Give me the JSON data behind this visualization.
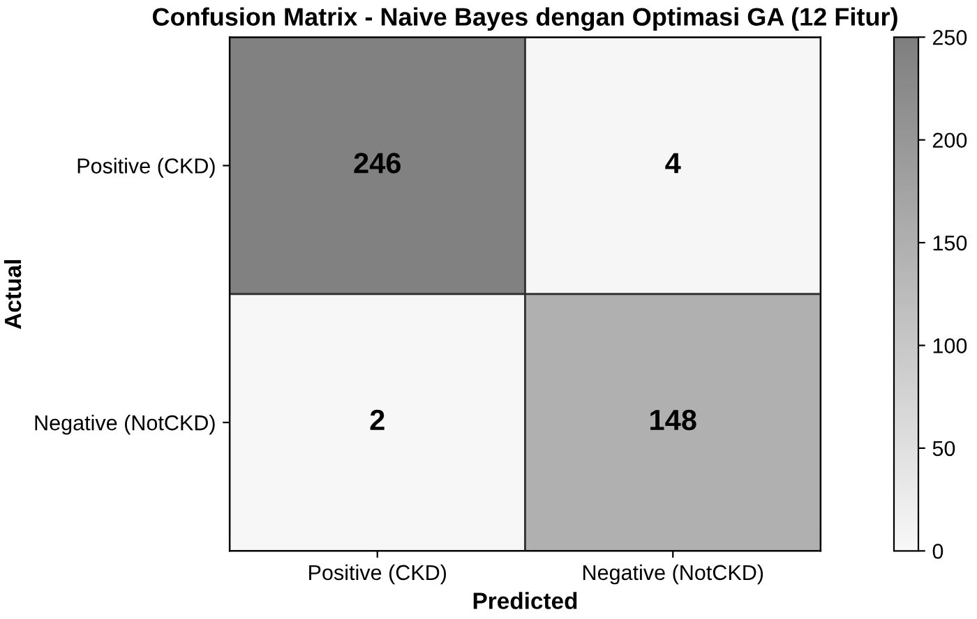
{
  "chart_data": {
    "type": "heatmap",
    "title": "Confusion Matrix - Naive Bayes dengan Optimasi GA (12 Fitur)",
    "xlabel": "Predicted",
    "ylabel": "Actual",
    "categories": [
      "Positive (CKD)",
      "Negative (NotCKD)"
    ],
    "y_categories": [
      "Positive (CKD)",
      "Negative (NotCKD)"
    ],
    "cells": [
      [
        246,
        4
      ],
      [
        2,
        148
      ]
    ],
    "clim": [
      0,
      250
    ],
    "cticks": [
      0,
      50,
      100,
      150,
      200,
      250
    ],
    "data_labels": true
  }
}
